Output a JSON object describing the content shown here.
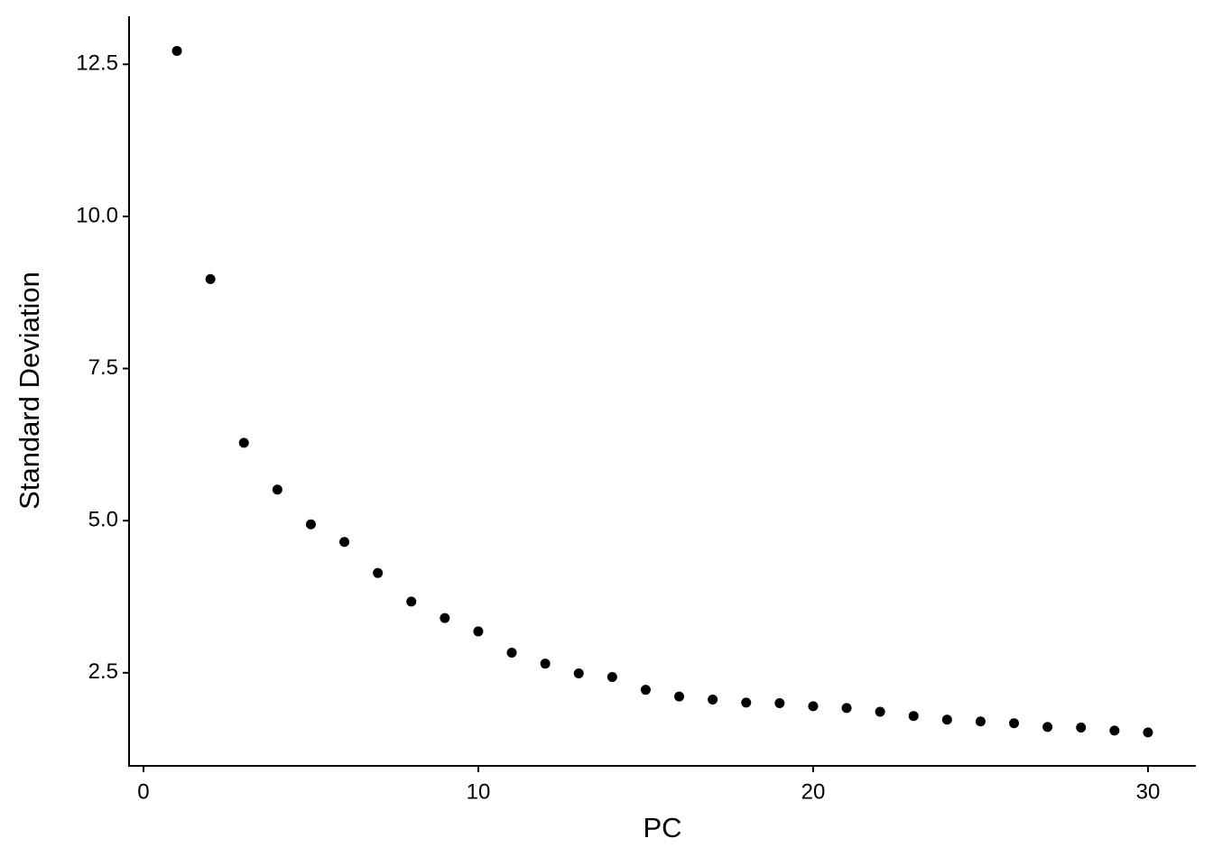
{
  "chart_data": {
    "type": "scatter",
    "x_label": "PC",
    "y_label": "Standard Deviation",
    "x": [
      1,
      2,
      3,
      4,
      5,
      6,
      7,
      8,
      9,
      10,
      11,
      12,
      13,
      14,
      15,
      16,
      17,
      18,
      19,
      20,
      21,
      22,
      23,
      24,
      25,
      26,
      27,
      28,
      29,
      30
    ],
    "values": [
      12.72,
      8.97,
      6.28,
      5.51,
      4.94,
      4.65,
      4.14,
      3.67,
      3.4,
      3.18,
      2.83,
      2.65,
      2.49,
      2.43,
      2.22,
      2.11,
      2.06,
      2.01,
      2.0,
      1.95,
      1.92,
      1.86,
      1.79,
      1.73,
      1.7,
      1.67,
      1.61,
      1.6,
      1.55,
      1.52
    ],
    "color": "#000000",
    "xlim": [
      -0.43,
      31.43
    ],
    "ylim": [
      0.97,
      13.29
    ],
    "xticks": [
      0,
      10,
      20,
      30
    ],
    "yticks": [
      2.5,
      {
        "value": 5,
        "label": "5.0"
      },
      7.5,
      {
        "value": 10,
        "label": "10.0"
      },
      12.5
    ]
  }
}
